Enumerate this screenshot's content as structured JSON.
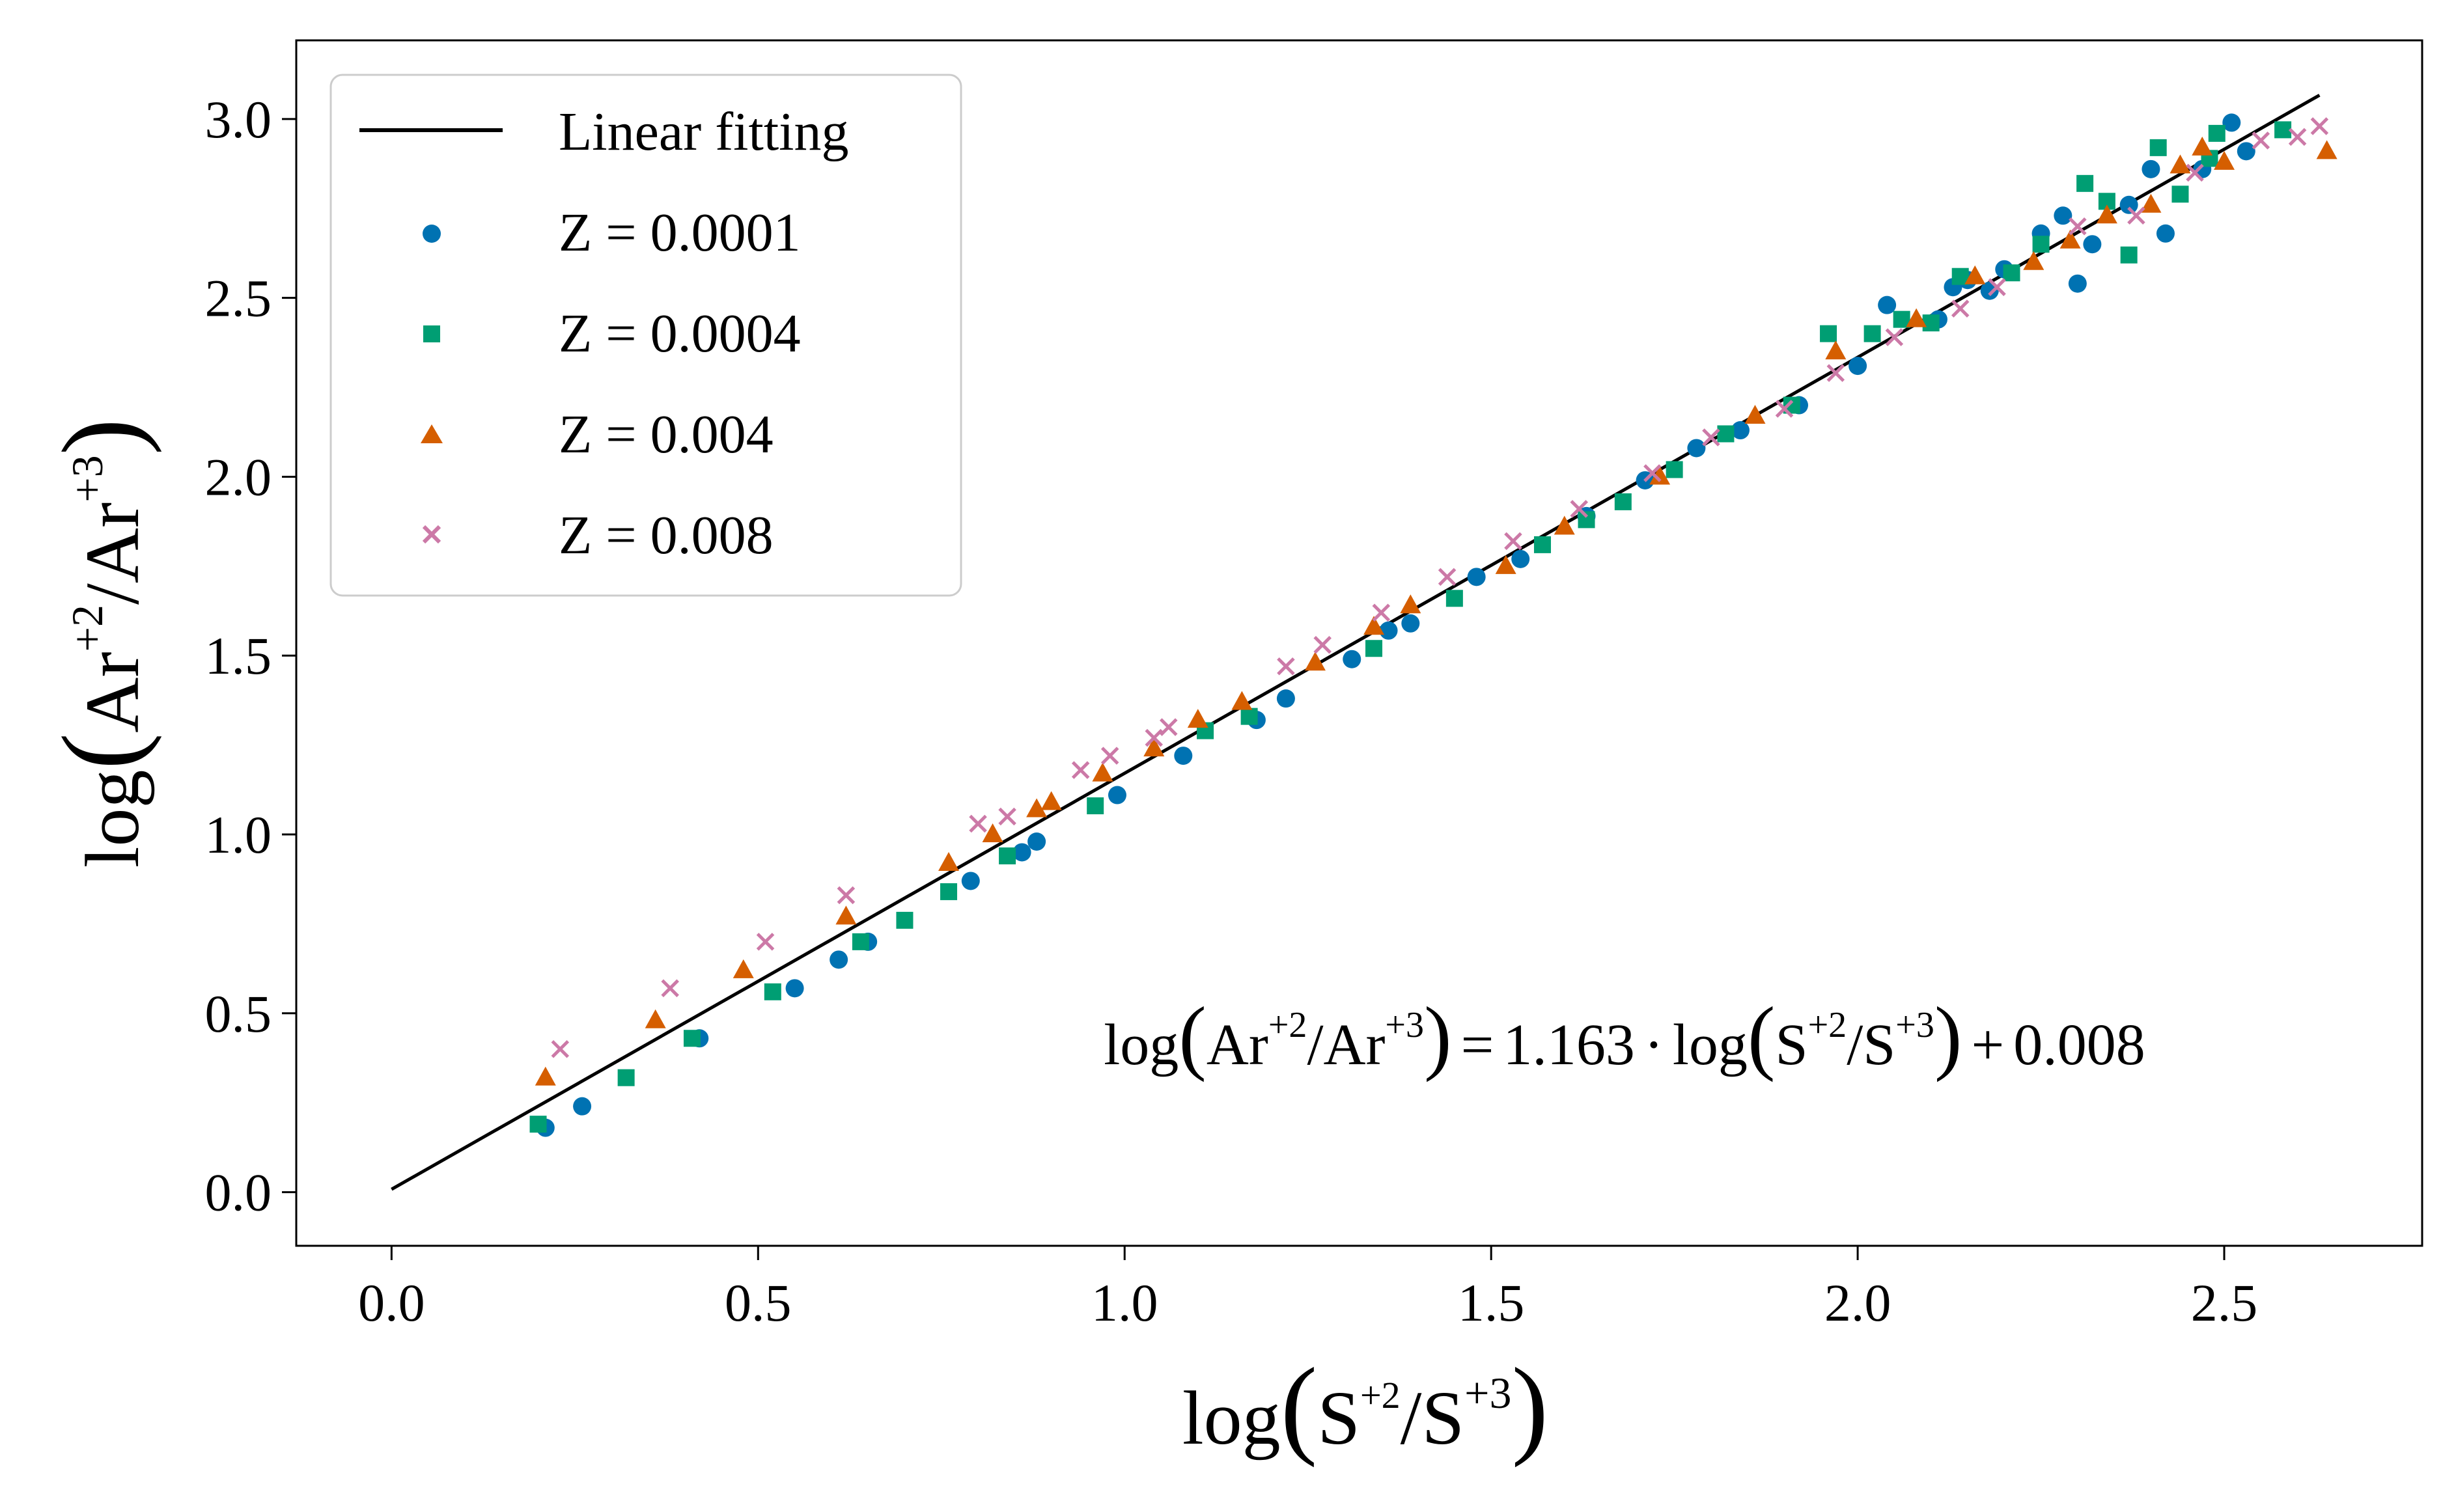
{
  "chart_data": {
    "type": "scatter",
    "x_axis": {
      "ticks": [
        0.0,
        0.5,
        1.0,
        1.5,
        2.0,
        2.5
      ],
      "tick_labels": [
        "0.0",
        "0.5",
        "1.0",
        "1.5",
        "2.0",
        "2.5"
      ],
      "range": [
        -0.13,
        2.77
      ],
      "label": {
        "prefix": "log",
        "num_base": "S",
        "num_sup": "+2",
        "sep": "/",
        "den_base": "S",
        "den_sup": "+3"
      }
    },
    "y_axis": {
      "ticks": [
        0.0,
        0.5,
        1.0,
        1.5,
        2.0,
        2.5,
        3.0
      ],
      "tick_labels": [
        "0.0",
        "0.5",
        "1.0",
        "1.5",
        "2.0",
        "2.5",
        "3.0"
      ],
      "range": [
        -0.15,
        3.22
      ],
      "label": {
        "prefix": "log",
        "num_base": "Ar",
        "num_sup": "+2",
        "sep": "/",
        "den_base": "Ar",
        "den_sup": "+3"
      }
    },
    "fit": {
      "slope": 1.163,
      "intercept": 0.008,
      "x_range": [
        0.0,
        2.63
      ],
      "color": "#000000",
      "label": "Linear fitting"
    },
    "equation": {
      "lhs_prefix": "log",
      "lhs_num_base": "Ar",
      "lhs_num_sup": "+2",
      "lhs_sep": "/",
      "lhs_den_base": "Ar",
      "lhs_den_sup": "+3",
      "eq_sign": "=",
      "slope_text": "1.163",
      "dot": "·",
      "rhs_prefix": "log",
      "rhs_num_base": "S",
      "rhs_num_sup": "+2",
      "rhs_sep": "/",
      "rhs_den_base": "S",
      "rhs_den_sup": "+3",
      "plus": "+",
      "intercept_text": "0.008"
    },
    "legend_position": "upper-left",
    "series": [
      {
        "name": "Z = 0.0001",
        "marker": "circle",
        "color": "#0072B2",
        "points": [
          [
            0.21,
            0.18
          ],
          [
            0.26,
            0.24
          ],
          [
            0.42,
            0.43
          ],
          [
            0.55,
            0.57
          ],
          [
            0.61,
            0.65
          ],
          [
            0.65,
            0.7
          ],
          [
            0.79,
            0.87
          ],
          [
            0.86,
            0.95
          ],
          [
            0.88,
            0.98
          ],
          [
            0.99,
            1.11
          ],
          [
            1.08,
            1.22
          ],
          [
            1.18,
            1.32
          ],
          [
            1.22,
            1.38
          ],
          [
            1.31,
            1.49
          ],
          [
            1.36,
            1.57
          ],
          [
            1.39,
            1.59
          ],
          [
            1.48,
            1.72
          ],
          [
            1.54,
            1.77
          ],
          [
            1.63,
            1.89
          ],
          [
            1.71,
            1.99
          ],
          [
            1.78,
            2.08
          ],
          [
            1.84,
            2.13
          ],
          [
            1.92,
            2.2
          ],
          [
            2.0,
            2.31
          ],
          [
            2.04,
            2.48
          ],
          [
            2.11,
            2.44
          ],
          [
            2.13,
            2.53
          ],
          [
            2.15,
            2.55
          ],
          [
            2.18,
            2.52
          ],
          [
            2.2,
            2.58
          ],
          [
            2.25,
            2.68
          ],
          [
            2.28,
            2.73
          ],
          [
            2.3,
            2.54
          ],
          [
            2.32,
            2.65
          ],
          [
            2.37,
            2.76
          ],
          [
            2.4,
            2.86
          ],
          [
            2.42,
            2.68
          ],
          [
            2.47,
            2.86
          ],
          [
            2.51,
            2.99
          ],
          [
            2.53,
            2.91
          ]
        ]
      },
      {
        "name": "Z = 0.0004",
        "marker": "square",
        "color": "#009E73",
        "points": [
          [
            0.2,
            0.19
          ],
          [
            0.32,
            0.32
          ],
          [
            0.41,
            0.43
          ],
          [
            0.52,
            0.56
          ],
          [
            0.64,
            0.7
          ],
          [
            0.7,
            0.76
          ],
          [
            0.76,
            0.84
          ],
          [
            0.84,
            0.94
          ],
          [
            0.96,
            1.08
          ],
          [
            1.11,
            1.29
          ],
          [
            1.17,
            1.33
          ],
          [
            1.34,
            1.52
          ],
          [
            1.45,
            1.66
          ],
          [
            1.57,
            1.81
          ],
          [
            1.63,
            1.88
          ],
          [
            1.68,
            1.93
          ],
          [
            1.75,
            2.02
          ],
          [
            1.82,
            2.12
          ],
          [
            1.91,
            2.2
          ],
          [
            1.96,
            2.4
          ],
          [
            2.02,
            2.4
          ],
          [
            2.06,
            2.44
          ],
          [
            2.1,
            2.43
          ],
          [
            2.14,
            2.56
          ],
          [
            2.21,
            2.57
          ],
          [
            2.25,
            2.65
          ],
          [
            2.31,
            2.82
          ],
          [
            2.34,
            2.77
          ],
          [
            2.37,
            2.62
          ],
          [
            2.41,
            2.92
          ],
          [
            2.44,
            2.79
          ],
          [
            2.48,
            2.89
          ],
          [
            2.49,
            2.96
          ],
          [
            2.58,
            2.97
          ]
        ]
      },
      {
        "name": "Z = 0.004",
        "marker": "triangle",
        "color": "#D55E00",
        "points": [
          [
            0.21,
            0.32
          ],
          [
            0.36,
            0.48
          ],
          [
            0.48,
            0.62
          ],
          [
            0.62,
            0.77
          ],
          [
            0.76,
            0.92
          ],
          [
            0.82,
            1.0
          ],
          [
            0.88,
            1.07
          ],
          [
            0.9,
            1.09
          ],
          [
            0.97,
            1.17
          ],
          [
            1.04,
            1.24
          ],
          [
            1.1,
            1.32
          ],
          [
            1.16,
            1.37
          ],
          [
            1.26,
            1.48
          ],
          [
            1.34,
            1.58
          ],
          [
            1.39,
            1.64
          ],
          [
            1.52,
            1.75
          ],
          [
            1.6,
            1.86
          ],
          [
            1.73,
            2.0
          ],
          [
            1.86,
            2.17
          ],
          [
            1.97,
            2.35
          ],
          [
            2.08,
            2.44
          ],
          [
            2.16,
            2.56
          ],
          [
            2.24,
            2.6
          ],
          [
            2.29,
            2.66
          ],
          [
            2.34,
            2.73
          ],
          [
            2.4,
            2.76
          ],
          [
            2.44,
            2.87
          ],
          [
            2.47,
            2.92
          ],
          [
            2.5,
            2.88
          ],
          [
            2.64,
            2.91
          ]
        ]
      },
      {
        "name": "Z = 0.008",
        "marker": "x",
        "color": "#CC79A7",
        "points": [
          [
            0.23,
            0.4
          ],
          [
            0.38,
            0.57
          ],
          [
            0.51,
            0.7
          ],
          [
            0.62,
            0.83
          ],
          [
            0.8,
            1.03
          ],
          [
            0.84,
            1.05
          ],
          [
            0.94,
            1.18
          ],
          [
            0.98,
            1.22
          ],
          [
            1.04,
            1.27
          ],
          [
            1.06,
            1.3
          ],
          [
            1.22,
            1.47
          ],
          [
            1.27,
            1.53
          ],
          [
            1.35,
            1.62
          ],
          [
            1.44,
            1.72
          ],
          [
            1.53,
            1.82
          ],
          [
            1.62,
            1.91
          ],
          [
            1.72,
            2.01
          ],
          [
            1.8,
            2.11
          ],
          [
            1.9,
            2.19
          ],
          [
            1.97,
            2.29
          ],
          [
            2.05,
            2.39
          ],
          [
            2.14,
            2.47
          ],
          [
            2.19,
            2.53
          ],
          [
            2.3,
            2.7
          ],
          [
            2.38,
            2.73
          ],
          [
            2.46,
            2.85
          ],
          [
            2.55,
            2.94
          ],
          [
            2.6,
            2.95
          ],
          [
            2.63,
            2.98
          ]
        ]
      }
    ]
  }
}
